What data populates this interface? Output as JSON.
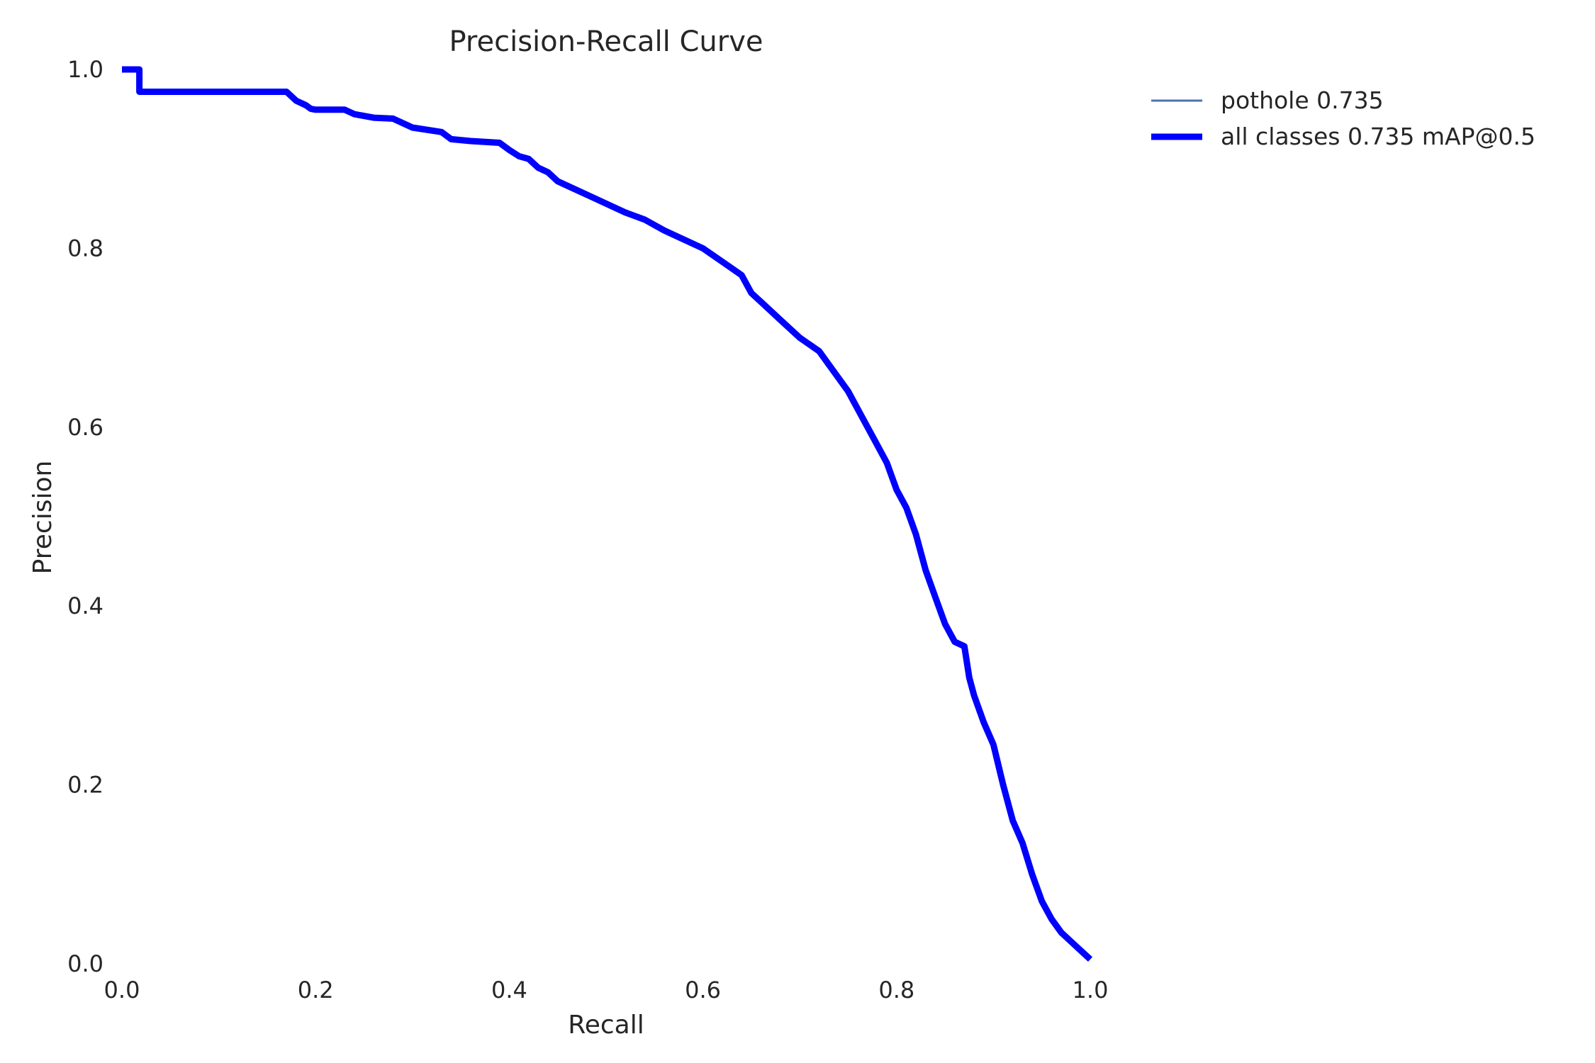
{
  "chart_data": {
    "type": "line",
    "title": "Precision-Recall Curve",
    "xlabel": "Recall",
    "ylabel": "Precision",
    "xlim": [
      0,
      1
    ],
    "ylim": [
      0,
      1
    ],
    "x_ticks": [
      "0.0",
      "0.2",
      "0.4",
      "0.6",
      "0.8",
      "1.0"
    ],
    "y_ticks": [
      "0.0",
      "0.2",
      "0.4",
      "0.6",
      "0.8",
      "1.0"
    ],
    "grid": false,
    "legend_position": "top-right",
    "series": [
      {
        "name": "pothole 0.735",
        "color": "#4c72b0",
        "x": [
          0.0,
          0.018,
          0.018,
          0.17,
          0.18,
          0.19,
          0.195,
          0.2,
          0.23,
          0.24,
          0.25,
          0.26,
          0.28,
          0.3,
          0.33,
          0.34,
          0.36,
          0.39,
          0.4,
          0.41,
          0.42,
          0.43,
          0.44,
          0.45,
          0.46,
          0.48,
          0.5,
          0.52,
          0.54,
          0.56,
          0.58,
          0.6,
          0.62,
          0.64,
          0.65,
          0.66,
          0.68,
          0.7,
          0.72,
          0.73,
          0.75,
          0.76,
          0.77,
          0.78,
          0.79,
          0.8,
          0.81,
          0.82,
          0.83,
          0.84,
          0.85,
          0.86,
          0.87,
          0.875,
          0.88,
          0.89,
          0.9,
          0.91,
          0.92,
          0.93,
          0.94,
          0.95,
          0.96,
          0.97,
          0.98,
          0.99,
          1.0
        ],
        "y": [
          1.0,
          1.0,
          0.975,
          0.975,
          0.965,
          0.96,
          0.956,
          0.955,
          0.955,
          0.95,
          0.948,
          0.946,
          0.945,
          0.935,
          0.93,
          0.922,
          0.92,
          0.918,
          0.91,
          0.903,
          0.9,
          0.89,
          0.885,
          0.875,
          0.87,
          0.86,
          0.85,
          0.84,
          0.832,
          0.82,
          0.81,
          0.8,
          0.785,
          0.77,
          0.75,
          0.74,
          0.72,
          0.7,
          0.685,
          0.67,
          0.64,
          0.62,
          0.6,
          0.58,
          0.56,
          0.53,
          0.51,
          0.48,
          0.44,
          0.41,
          0.38,
          0.36,
          0.355,
          0.32,
          0.3,
          0.27,
          0.245,
          0.2,
          0.16,
          0.135,
          0.1,
          0.07,
          0.05,
          0.035,
          0.025,
          0.015,
          0.005
        ]
      },
      {
        "name": "all classes 0.735 mAP@0.5",
        "color": "#0000ff",
        "x": [
          0.0,
          0.018,
          0.018,
          0.17,
          0.18,
          0.19,
          0.195,
          0.2,
          0.23,
          0.24,
          0.25,
          0.26,
          0.28,
          0.3,
          0.33,
          0.34,
          0.36,
          0.39,
          0.4,
          0.41,
          0.42,
          0.43,
          0.44,
          0.45,
          0.46,
          0.48,
          0.5,
          0.52,
          0.54,
          0.56,
          0.58,
          0.6,
          0.62,
          0.64,
          0.65,
          0.66,
          0.68,
          0.7,
          0.72,
          0.73,
          0.75,
          0.76,
          0.77,
          0.78,
          0.79,
          0.8,
          0.81,
          0.82,
          0.83,
          0.84,
          0.85,
          0.86,
          0.87,
          0.875,
          0.88,
          0.89,
          0.9,
          0.91,
          0.92,
          0.93,
          0.94,
          0.95,
          0.96,
          0.97,
          0.98,
          0.99,
          1.0
        ],
        "y": [
          1.0,
          1.0,
          0.975,
          0.975,
          0.965,
          0.96,
          0.956,
          0.955,
          0.955,
          0.95,
          0.948,
          0.946,
          0.945,
          0.935,
          0.93,
          0.922,
          0.92,
          0.918,
          0.91,
          0.903,
          0.9,
          0.89,
          0.885,
          0.875,
          0.87,
          0.86,
          0.85,
          0.84,
          0.832,
          0.82,
          0.81,
          0.8,
          0.785,
          0.77,
          0.75,
          0.74,
          0.72,
          0.7,
          0.685,
          0.67,
          0.64,
          0.62,
          0.6,
          0.58,
          0.56,
          0.53,
          0.51,
          0.48,
          0.44,
          0.41,
          0.38,
          0.36,
          0.355,
          0.32,
          0.3,
          0.27,
          0.245,
          0.2,
          0.16,
          0.135,
          0.1,
          0.07,
          0.05,
          0.035,
          0.025,
          0.015,
          0.005
        ]
      }
    ]
  }
}
